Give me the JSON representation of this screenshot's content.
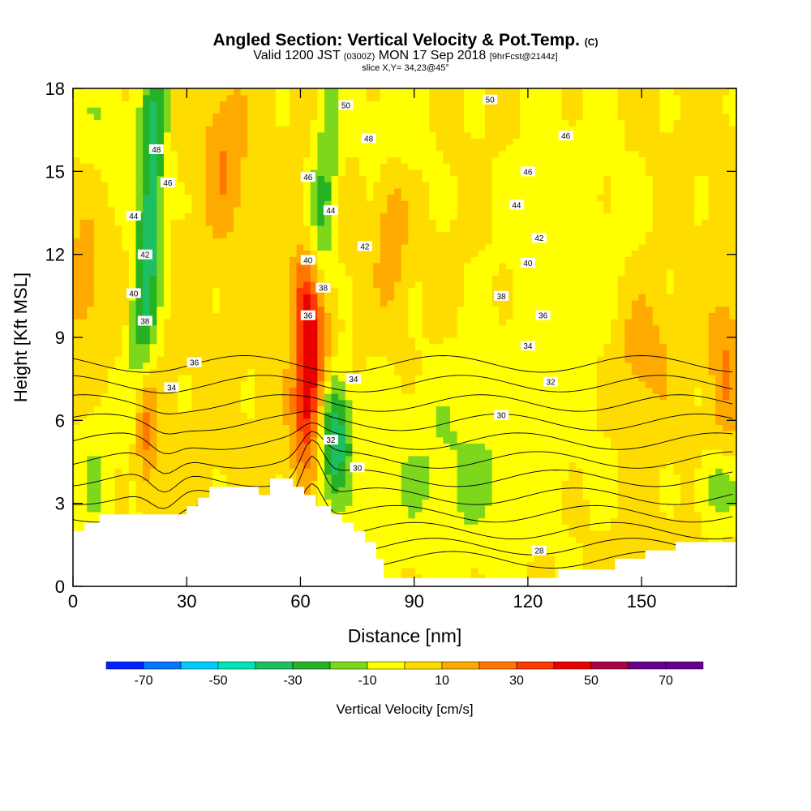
{
  "header": {
    "title_main": "Angled Section: Vertical Velocity & Pot.Temp.",
    "title_unit": "(C)",
    "valid_a": "Valid 1200 JST",
    "valid_b": "(0300Z)",
    "valid_c": "MON 17 Sep 2018",
    "valid_d": "[9hrFcst@2144z]",
    "slice": "slice X,Y= 34,23@45°"
  },
  "chart_data": {
    "type": "heatmap",
    "title": "Angled Section: Vertical Velocity & Pot.Temp. (C)",
    "xlabel": "Distance [nm]",
    "ylabel": "Height [Kft MSL]",
    "xlim": [
      0,
      175
    ],
    "ylim": [
      0,
      18
    ],
    "xticks": [
      0,
      30,
      60,
      90,
      120,
      150
    ],
    "yticks": [
      0,
      3,
      6,
      9,
      12,
      15,
      18
    ],
    "colorbar": {
      "label": "Vertical Velocity [cm/s]",
      "tick_labels": [
        "-70",
        "-50",
        "-30",
        "-10",
        "10",
        "30",
        "50",
        "70"
      ],
      "tick_values": [
        -70,
        -50,
        -30,
        -10,
        10,
        30,
        50,
        70
      ],
      "bin_edges": [
        -80,
        -70,
        -60,
        -50,
        -40,
        -30,
        -20,
        -10,
        0,
        10,
        20,
        30,
        40,
        50,
        60,
        70,
        80
      ],
      "colors": [
        "#0022ff",
        "#0077ff",
        "#00ccff",
        "#00e5b8",
        "#1dbf60",
        "#25b225",
        "#7dd81d",
        "#ffff00",
        "#ffdc00",
        "#ffaa00",
        "#ff7700",
        "#ff3a00",
        "#e80000",
        "#aa0044",
        "#66008c",
        "#66008c"
      ]
    },
    "terrain_kft": [
      [
        0,
        2.0
      ],
      [
        3,
        2.0
      ],
      [
        3,
        2.3
      ],
      [
        7,
        2.3
      ],
      [
        7,
        2.6
      ],
      [
        30,
        2.6
      ],
      [
        30,
        2.9
      ],
      [
        33,
        2.9
      ],
      [
        33,
        3.2
      ],
      [
        36,
        3.2
      ],
      [
        36,
        3.6
      ],
      [
        49,
        3.6
      ],
      [
        49,
        3.3
      ],
      [
        52,
        3.3
      ],
      [
        52,
        3.9
      ],
      [
        58,
        3.9
      ],
      [
        58,
        3.6
      ],
      [
        61,
        3.6
      ],
      [
        61,
        3.3
      ],
      [
        64,
        3.3
      ],
      [
        64,
        2.9
      ],
      [
        68,
        2.9
      ],
      [
        68,
        2.6
      ],
      [
        71,
        2.6
      ],
      [
        71,
        2.3
      ],
      [
        74,
        2.3
      ],
      [
        74,
        2.0
      ],
      [
        77,
        2.0
      ],
      [
        77,
        1.6
      ],
      [
        80,
        1.6
      ],
      [
        80,
        1.0
      ],
      [
        82,
        1.0
      ],
      [
        82,
        0.3
      ],
      [
        128,
        0.3
      ],
      [
        128,
        0.6
      ],
      [
        143,
        0.6
      ],
      [
        143,
        1.0
      ],
      [
        151,
        1.0
      ],
      [
        151,
        1.3
      ],
      [
        159,
        1.3
      ],
      [
        159,
        1.6
      ],
      [
        175,
        1.6
      ]
    ],
    "velocity_features": [
      {
        "name": "downdraft-left",
        "x": 20,
        "y": 13,
        "sx": 2.6,
        "sy": 5.5,
        "v": -40,
        "tilt": 0.35
      },
      {
        "name": "updraft-left",
        "x": 19,
        "y": 5.8,
        "sx": 2.2,
        "sy": 1.6,
        "v": 33
      },
      {
        "name": "updraft-center",
        "x": 63,
        "y": 7.5,
        "sx": 3.0,
        "sy": 2.3,
        "v": 58,
        "tilt": 0.4
      },
      {
        "name": "updraft-center-upper",
        "x": 61,
        "y": 10.5,
        "sx": 3.0,
        "sy": 1.2,
        "v": 25
      },
      {
        "name": "downdraft-center",
        "x": 69,
        "y": 5.5,
        "sx": 3.0,
        "sy": 1.6,
        "v": -42
      },
      {
        "name": "downdraft-center-upper",
        "x": 66,
        "y": 13,
        "sx": 2.5,
        "sy": 4.5,
        "v": -25,
        "tilt": 0.3
      },
      {
        "name": "green-left-low",
        "x": 6,
        "y": 4,
        "sx": 4,
        "sy": 2,
        "v": -13
      },
      {
        "name": "green-zone-lower",
        "x": 100,
        "y": 4,
        "sx": 18,
        "sy": 2.8,
        "v": -14
      },
      {
        "name": "green-zone-upper-right",
        "x": 130,
        "y": 12,
        "sx": 14,
        "sy": 5,
        "v": -9
      },
      {
        "name": "green-top-left",
        "x": 8,
        "y": 17,
        "sx": 6,
        "sy": 1.5,
        "v": -11
      },
      {
        "name": "green-top-center",
        "x": 85,
        "y": 16.5,
        "sx": 7,
        "sy": 1.8,
        "v": -11
      },
      {
        "name": "green-right-low",
        "x": 170,
        "y": 3.5,
        "sx": 4,
        "sy": 1,
        "v": -19
      },
      {
        "name": "orange-top-left",
        "x": 40,
        "y": 15.5,
        "sx": 4,
        "sy": 2,
        "v": 17
      },
      {
        "name": "orange-mid",
        "x": 84,
        "y": 13,
        "sx": 3,
        "sy": 2,
        "v": 16
      },
      {
        "name": "orange-right",
        "x": 150,
        "y": 8.5,
        "sx": 5,
        "sy": 1.5,
        "v": 16
      },
      {
        "name": "orange-far-right",
        "x": 172,
        "y": 8,
        "sx": 3,
        "sy": 2,
        "v": 17
      },
      {
        "name": "orange-upper-left",
        "x": 3,
        "y": 11,
        "sx": 3,
        "sy": 1.5,
        "v": 15
      }
    ],
    "contour_values": [
      28,
      30,
      32,
      34,
      36,
      38,
      40,
      42,
      44,
      46,
      48,
      50
    ],
    "contour_labels": [
      {
        "text": "50",
        "x": 72,
        "y": 17.4
      },
      {
        "text": "50",
        "x": 110,
        "y": 17.6
      },
      {
        "text": "48",
        "x": 22,
        "y": 15.8
      },
      {
        "text": "48",
        "x": 78,
        "y": 16.2
      },
      {
        "text": "46",
        "x": 130,
        "y": 16.3
      },
      {
        "text": "46",
        "x": 25,
        "y": 14.6
      },
      {
        "text": "46",
        "x": 62,
        "y": 14.8
      },
      {
        "text": "46",
        "x": 120,
        "y": 15.0
      },
      {
        "text": "44",
        "x": 16,
        "y": 13.4
      },
      {
        "text": "44",
        "x": 68,
        "y": 13.6
      },
      {
        "text": "44",
        "x": 117,
        "y": 13.8
      },
      {
        "text": "42",
        "x": 19,
        "y": 12.0
      },
      {
        "text": "42",
        "x": 77,
        "y": 12.3
      },
      {
        "text": "42",
        "x": 123,
        "y": 12.6
      },
      {
        "text": "40",
        "x": 62,
        "y": 11.8
      },
      {
        "text": "40",
        "x": 120,
        "y": 11.7
      },
      {
        "text": "40",
        "x": 16,
        "y": 10.6
      },
      {
        "text": "38",
        "x": 66,
        "y": 10.8
      },
      {
        "text": "38",
        "x": 113,
        "y": 10.5
      },
      {
        "text": "38",
        "x": 19,
        "y": 9.6
      },
      {
        "text": "36",
        "x": 62,
        "y": 9.8
      },
      {
        "text": "36",
        "x": 124,
        "y": 9.8
      },
      {
        "text": "36",
        "x": 32,
        "y": 8.1
      },
      {
        "text": "34",
        "x": 120,
        "y": 8.7
      },
      {
        "text": "34",
        "x": 26,
        "y": 7.2
      },
      {
        "text": "34",
        "x": 74,
        "y": 7.5
      },
      {
        "text": "32",
        "x": 126,
        "y": 7.4
      },
      {
        "text": "30",
        "x": 113,
        "y": 6.2
      },
      {
        "text": "32",
        "x": 68,
        "y": 5.3
      },
      {
        "text": "30",
        "x": 75,
        "y": 4.3
      },
      {
        "text": "28",
        "x": 123,
        "y": 1.3
      }
    ]
  }
}
